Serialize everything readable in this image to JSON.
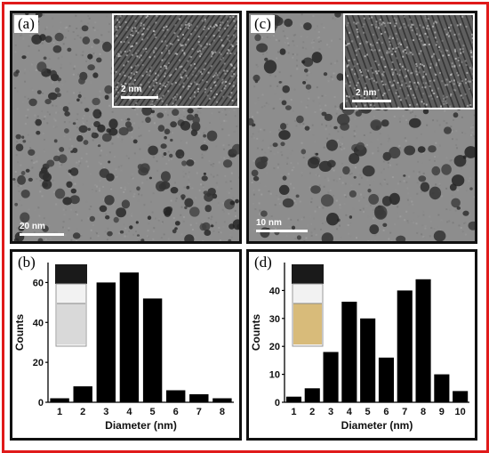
{
  "panels": {
    "a": {
      "label": "(a)",
      "scale_bar": "20 nm",
      "inset_scale_bar": "2 nm"
    },
    "c": {
      "label": "(c)",
      "scale_bar": "10 nm",
      "inset_scale_bar": "2 nm"
    },
    "b": {
      "label": "(b)"
    },
    "d": {
      "label": "(d)"
    }
  },
  "colors": {
    "border": "#e01a1a",
    "bar": "#000000",
    "vial_b_liquid": "#d9d9d9",
    "vial_d_liquid": "#d8bb7a"
  },
  "chart_data": [
    {
      "type": "bar",
      "panel": "b",
      "categories": [
        "1",
        "2",
        "3",
        "4",
        "5",
        "6",
        "7",
        "8"
      ],
      "values": [
        2,
        8,
        60,
        65,
        52,
        6,
        4,
        2
      ],
      "xlabel": "Diameter (nm)",
      "ylabel": "Counts",
      "ylim": [
        0,
        70
      ],
      "yticks": [
        "0",
        "20",
        "40",
        "60"
      ]
    },
    {
      "type": "bar",
      "panel": "d",
      "categories": [
        "1",
        "2",
        "3",
        "4",
        "5",
        "6",
        "7",
        "8",
        "9",
        "10"
      ],
      "values": [
        2,
        5,
        18,
        36,
        30,
        16,
        40,
        44,
        10,
        4
      ],
      "xlabel": "Diameter (nm)",
      "ylabel": "Counts",
      "ylim": [
        0,
        50
      ],
      "yticks": [
        "0",
        "10",
        "20",
        "30",
        "40"
      ]
    }
  ]
}
